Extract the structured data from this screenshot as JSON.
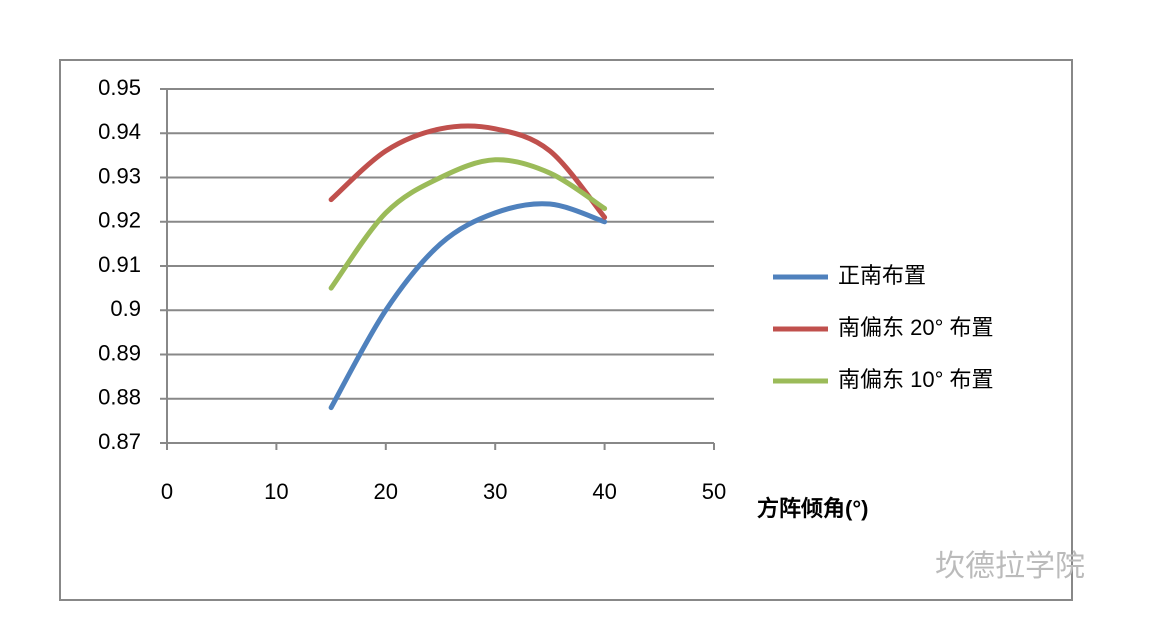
{
  "chart_data": {
    "type": "line",
    "x_label": "方阵倾角(°)",
    "watermark": "坎德拉学院",
    "x": [
      15,
      20,
      25,
      30,
      35,
      40
    ],
    "series": [
      {
        "name": "正南布置",
        "color": "#4f81bd",
        "values": [
          0.878,
          0.9,
          0.915,
          0.922,
          0.924,
          0.92
        ]
      },
      {
        "name": "南偏东 20° 布置",
        "color": "#c0504d",
        "values": [
          0.925,
          0.936,
          0.941,
          0.941,
          0.936,
          0.921
        ]
      },
      {
        "name": "南偏东 10° 布置",
        "color": "#9bbb59",
        "values": [
          0.905,
          0.922,
          0.93,
          0.934,
          0.931,
          0.923
        ]
      }
    ],
    "xlim": [
      0,
      50
    ],
    "xticks": [
      0,
      10,
      20,
      30,
      40,
      50
    ],
    "ylim": [
      0.87,
      0.95
    ],
    "yticks": [
      0.87,
      0.88,
      0.89,
      0.9,
      0.91,
      0.92,
      0.93,
      0.94,
      0.95
    ],
    "grid": true,
    "legend": "right"
  }
}
